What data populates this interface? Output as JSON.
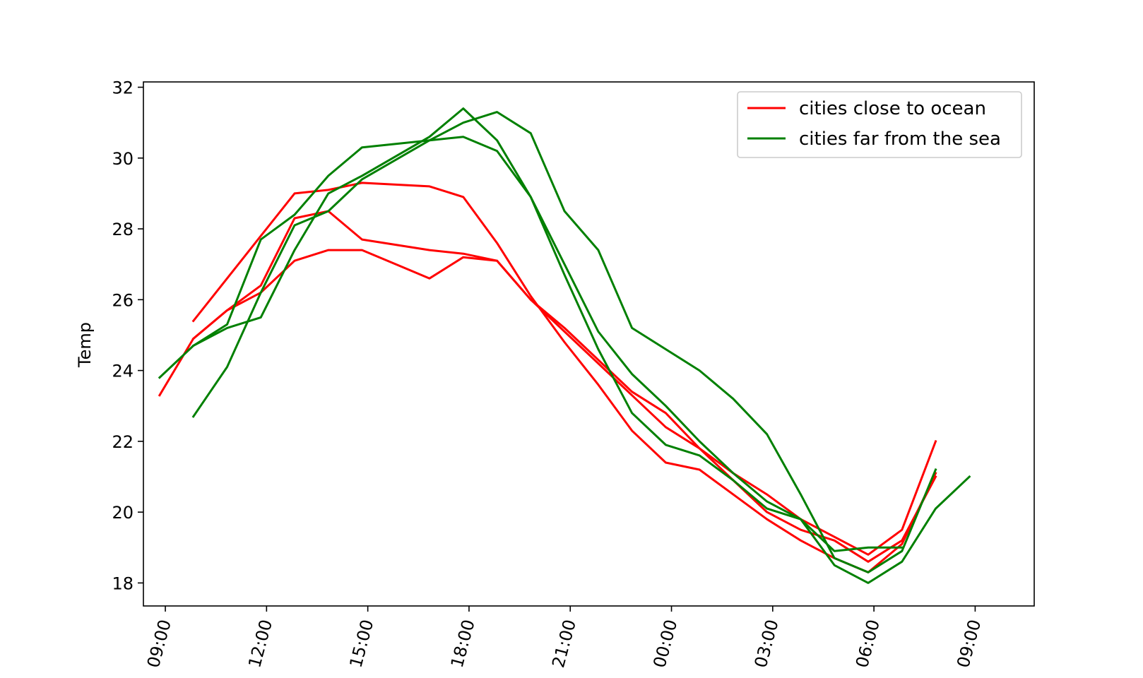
{
  "chart_data": {
    "type": "line",
    "title": "",
    "xlabel": "",
    "ylabel": "Temp",
    "ylim": [
      17.35,
      32.15
    ],
    "xlim": [
      8.35,
      34.75
    ],
    "x_unit": "hours from 00:00 on day 1",
    "x_ticks": [
      9,
      12,
      15,
      18,
      21,
      24,
      27,
      30,
      33
    ],
    "x_tick_labels": [
      "09:00",
      "12:00",
      "15:00",
      "18:00",
      "21:00",
      "00:00",
      "03:00",
      "06:00",
      "09:00"
    ],
    "y_ticks": [
      18,
      20,
      22,
      24,
      26,
      28,
      30,
      32
    ],
    "y_tick_labels": [
      "18",
      "20",
      "22",
      "24",
      "26",
      "28",
      "30",
      "32"
    ],
    "grid": false,
    "legend": {
      "placement": "top-right",
      "entries": [
        {
          "label": "cities close to ocean",
          "color": "#ff0000"
        },
        {
          "label": "cities far from the sea",
          "color": "#008000"
        }
      ]
    },
    "series": [
      {
        "group": "cities close to ocean",
        "color": "#ff0000",
        "x": [
          8.83,
          9.83,
          10.83,
          11.83,
          12.83,
          13.83,
          14.83,
          16.83,
          17.83,
          18.83,
          19.83,
          20.83,
          21.83,
          22.83,
          23.83,
          24.83,
          25.83,
          26.83,
          27.83,
          28.83,
          29.83,
          30.83,
          31.83
        ],
        "y": [
          23.3,
          24.9,
          25.7,
          26.2,
          27.1,
          27.4,
          27.4,
          26.6,
          27.2,
          27.1,
          26.0,
          25.1,
          24.2,
          23.3,
          22.4,
          21.8,
          21.1,
          20.5,
          19.8,
          19.3,
          18.8,
          19.5,
          22.0
        ]
      },
      {
        "group": "cities close to ocean",
        "color": "#ff0000",
        "x": [
          9.83,
          10.83,
          11.83,
          12.83,
          13.83,
          14.83,
          16.83,
          17.83,
          18.83,
          19.83,
          20.83,
          21.83,
          22.83,
          23.83,
          24.83,
          25.83,
          26.83,
          27.83,
          28.83,
          29.83,
          30.83,
          31.83
        ],
        "y": [
          25.4,
          26.6,
          27.8,
          29.0,
          29.1,
          29.3,
          29.2,
          28.9,
          27.6,
          26.1,
          24.8,
          23.6,
          22.3,
          21.4,
          21.2,
          20.5,
          19.8,
          19.2,
          18.7,
          18.3,
          19.1,
          21.1
        ]
      },
      {
        "group": "cities close to ocean",
        "color": "#ff0000",
        "x": [
          9.83,
          10.83,
          11.83,
          12.83,
          13.83,
          14.83,
          16.83,
          17.83,
          18.83,
          19.83,
          20.83,
          21.83,
          22.83,
          23.83,
          24.83,
          25.83,
          26.83,
          27.83,
          28.83,
          29.83,
          30.83,
          31.83
        ],
        "y": [
          24.9,
          25.7,
          26.4,
          28.3,
          28.5,
          27.7,
          27.4,
          27.3,
          27.1,
          26.0,
          25.2,
          24.3,
          23.4,
          22.8,
          21.8,
          20.9,
          20.0,
          19.5,
          19.2,
          18.6,
          19.2,
          21.0
        ]
      },
      {
        "group": "cities far from the sea",
        "color": "#008000",
        "x": [
          8.83,
          9.83,
          10.83,
          11.83,
          12.83,
          13.83,
          14.83,
          16.83,
          17.83,
          18.83,
          19.83,
          20.83,
          21.83,
          22.83,
          23.83,
          24.83,
          25.83,
          26.83,
          27.83,
          28.83,
          29.83,
          30.83,
          31.83,
          32.83
        ],
        "y": [
          23.8,
          24.7,
          25.3,
          27.7,
          28.4,
          29.5,
          30.3,
          30.5,
          30.6,
          30.2,
          28.9,
          27.0,
          25.1,
          23.9,
          23.0,
          22.0,
          21.1,
          20.3,
          19.8,
          18.5,
          18.0,
          18.6,
          20.1,
          21.0
        ]
      },
      {
        "group": "cities far from the sea",
        "color": "#008000",
        "x": [
          9.83,
          10.83,
          11.83,
          12.83,
          13.83,
          14.83,
          16.83,
          17.83,
          18.83,
          19.83,
          20.83,
          21.83,
          22.83,
          23.83,
          24.83,
          25.83,
          26.83,
          27.83,
          28.83,
          29.83,
          30.83
        ],
        "y": [
          24.7,
          25.2,
          25.5,
          27.4,
          29.0,
          29.5,
          30.6,
          31.4,
          30.5,
          28.9,
          26.7,
          24.6,
          22.8,
          21.9,
          21.6,
          20.9,
          20.1,
          19.8,
          18.9,
          19.0,
          19.0
        ]
      },
      {
        "group": "cities far from the sea",
        "color": "#008000",
        "x": [
          9.83,
          10.83,
          11.83,
          12.83,
          13.83,
          14.83,
          16.83,
          17.83,
          18.83,
          19.83,
          20.83,
          21.83,
          22.83,
          23.83,
          24.83,
          25.83,
          26.83,
          27.83,
          28.83,
          29.83,
          30.83,
          31.83
        ],
        "y": [
          22.7,
          24.1,
          26.2,
          28.1,
          28.5,
          29.4,
          30.5,
          31.0,
          31.3,
          30.7,
          28.5,
          27.4,
          25.2,
          24.6,
          24.0,
          23.2,
          22.2,
          20.5,
          18.7,
          18.3,
          18.9,
          21.2
        ]
      }
    ]
  }
}
